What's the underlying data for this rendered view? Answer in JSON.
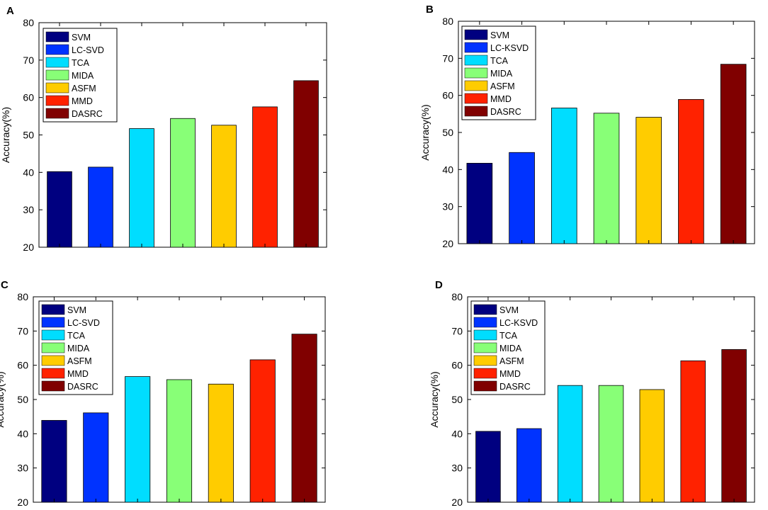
{
  "chart_data": [
    {
      "panel": "A",
      "type": "bar",
      "categories": [
        "SVM",
        "LC-SVD",
        "TCA",
        "MIDA",
        "ASFM",
        "MMD",
        "DASRC"
      ],
      "values": [
        40.2,
        41.4,
        51.7,
        54.4,
        52.6,
        57.5,
        64.5
      ],
      "ylabel": "Accuracy(%)",
      "xlabel": "",
      "ylim": [
        20,
        80
      ],
      "yticks": [
        20,
        30,
        40,
        50,
        60,
        70,
        80
      ],
      "legend": [
        "SVM",
        "LC-SVD",
        "TCA",
        "MIDA",
        "ASFM",
        "MMD",
        "DASRC"
      ],
      "legend_position": "top-left"
    },
    {
      "panel": "B",
      "type": "bar",
      "categories": [
        "SVM",
        "LC-KSVD",
        "TCA",
        "MIDA",
        "ASFM",
        "MMD",
        "DASRC"
      ],
      "values": [
        41.7,
        44.6,
        56.6,
        55.2,
        54.1,
        58.9,
        68.4
      ],
      "ylabel": "Accuracy(%)",
      "xlabel": "",
      "ylim": [
        20,
        80
      ],
      "yticks": [
        20,
        30,
        40,
        50,
        60,
        70,
        80
      ],
      "legend": [
        "SVM",
        "LC-KSVD",
        "TCA",
        "MIDA",
        "ASFM",
        "MMD",
        "DASRC"
      ],
      "legend_position": "top-left"
    },
    {
      "panel": "C",
      "type": "bar",
      "categories": [
        "SVM",
        "LC-SVD",
        "TCA",
        "MIDA",
        "ASFM",
        "MMD",
        "DASRC"
      ],
      "values": [
        43.9,
        46.1,
        56.7,
        55.8,
        54.5,
        61.6,
        69.1
      ],
      "ylabel": "Accuracy(%)",
      "xlabel": "",
      "ylim": [
        20,
        80
      ],
      "yticks": [
        20,
        30,
        40,
        50,
        60,
        70,
        80
      ],
      "legend": [
        "SVM",
        "LC-SVD",
        "TCA",
        "MIDA",
        "ASFM",
        "MMD",
        "DASRC"
      ],
      "legend_position": "top-left"
    },
    {
      "panel": "D",
      "type": "bar",
      "categories": [
        "SVM",
        "LC-KSVD",
        "TCA",
        "MIDA",
        "ASFM",
        "MMD",
        "DASRC"
      ],
      "values": [
        40.7,
        41.5,
        54.1,
        54.1,
        52.9,
        61.3,
        64.6
      ],
      "ylabel": "Accuracy(%)",
      "xlabel": "",
      "ylim": [
        20,
        80
      ],
      "yticks": [
        20,
        30,
        40,
        50,
        60,
        70,
        80
      ],
      "legend": [
        "SVM",
        "LC-KSVD",
        "TCA",
        "MIDA",
        "ASFM",
        "MMD",
        "DASRC"
      ],
      "legend_position": "top-left"
    }
  ],
  "colors": [
    "#000080",
    "#0033ff",
    "#00ddff",
    "#88ff77",
    "#ffcc00",
    "#ff2200",
    "#800000"
  ]
}
